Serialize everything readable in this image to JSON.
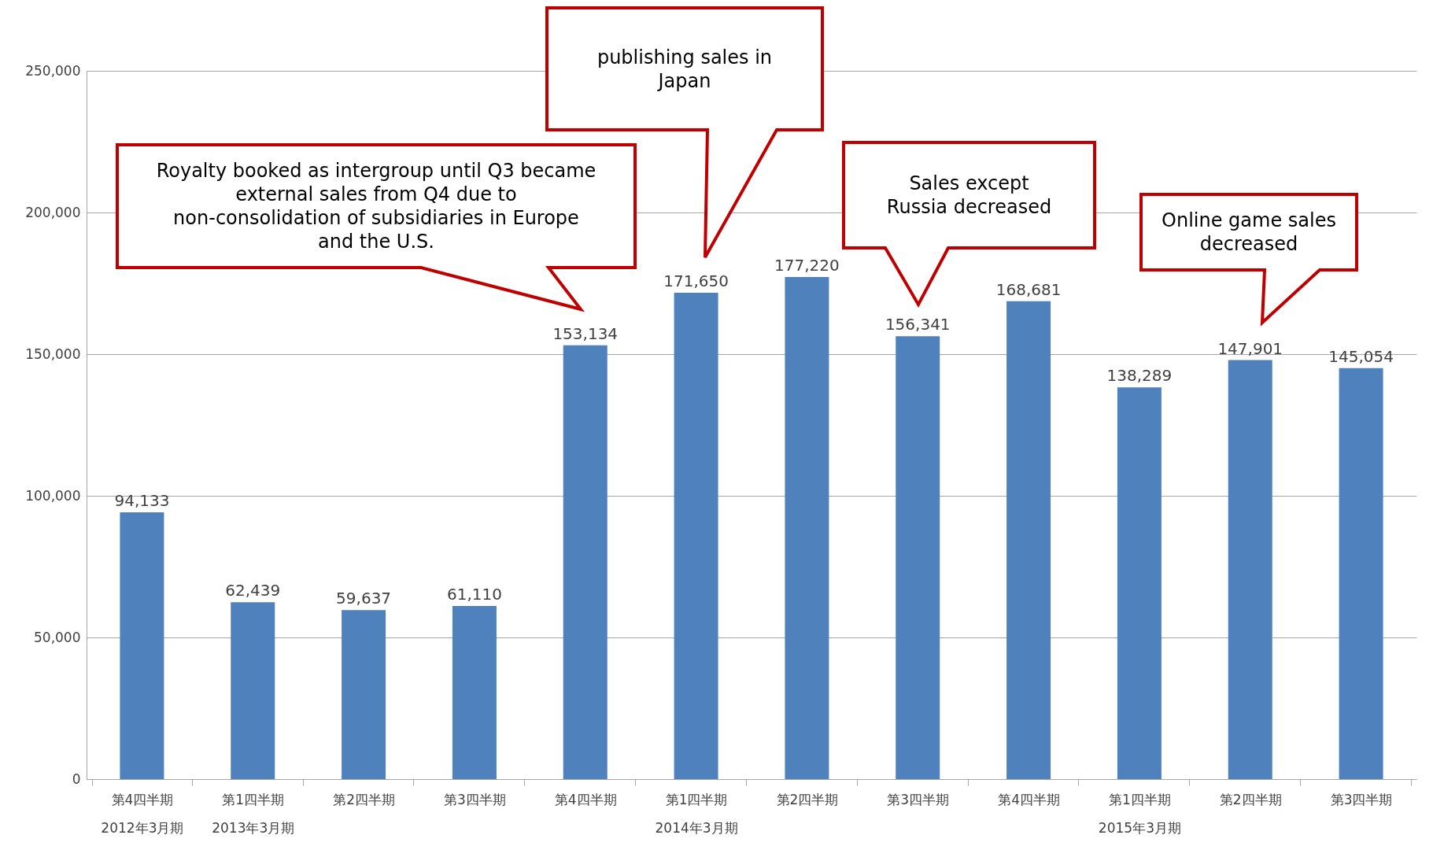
{
  "chart_data": {
    "type": "bar",
    "categories": [
      "第4四半期\n2012年3月期",
      "第1四半期\n2013年3月期",
      "第2四半期",
      "第3四半期",
      "第4四半期",
      "第1四半期\n2014年3月期",
      "第2四半期",
      "第3四半期",
      "第4四半期",
      "第1四半期\n2015年3月期",
      "第2四半期",
      "第3四半期"
    ],
    "values": [
      94133,
      62439,
      59637,
      61110,
      153134,
      171650,
      177220,
      156341,
      168681,
      138289,
      147901,
      145054
    ],
    "value_labels": [
      "94,133",
      "62,439",
      "59,637",
      "61,110",
      "153,134",
      "171,650",
      "177,220",
      "156,341",
      "168,681",
      "138,289",
      "147,901",
      "145,054"
    ],
    "color": "#4f81bd",
    "ylim": [
      0,
      250000
    ],
    "yticks": [
      0,
      {
        "value": 50000,
        "label": "50,000"
      },
      {
        "value": 100000,
        "label": "100,000"
      },
      {
        "value": 150000,
        "label": "150,000"
      },
      {
        "value": 200000,
        "label": "200,000"
      },
      {
        "value": 250000,
        "label": "250,000"
      }
    ],
    "grid": "y",
    "annotations": [
      "Royalty booked as intergroup until Q3 became\nexternal sales from Q4 due to\nnon-consolidation of subsidiaries in Europe\nand the U.S.",
      "publishing sales in\nJapan",
      "Sales except\nRussia decreased",
      "Online game sales\ndecreased"
    ]
  }
}
